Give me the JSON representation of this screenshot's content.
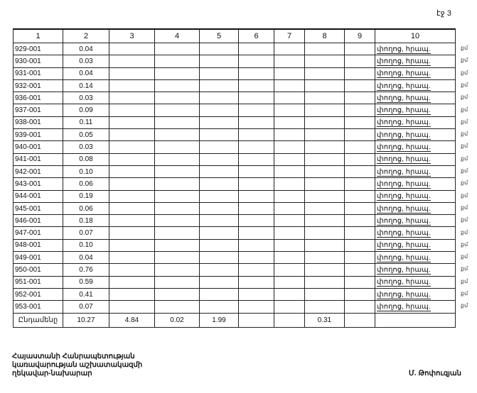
{
  "page_label": "էջ 3",
  "table": {
    "headers": [
      "1",
      "2",
      "3",
      "4",
      "5",
      "6",
      "7",
      "8",
      "9",
      "10"
    ],
    "rows": [
      [
        "929-001",
        "0.04"
      ],
      [
        "930-001",
        "0.03"
      ],
      [
        "931-001",
        "0.04"
      ],
      [
        "932-001",
        "0.14"
      ],
      [
        "936-001",
        "0.03"
      ],
      [
        "937-001",
        "0.09"
      ],
      [
        "938-001",
        "0.11"
      ],
      [
        "939-001",
        "0.05"
      ],
      [
        "940-001",
        "0.03"
      ],
      [
        "941-001",
        "0.08"
      ],
      [
        "942-001",
        "0.10"
      ],
      [
        "943-001",
        "0.06"
      ],
      [
        "944-001",
        "0.19"
      ],
      [
        "945-001",
        "0.06"
      ],
      [
        "946-001",
        "0.18"
      ],
      [
        "947-001",
        "0.07"
      ],
      [
        "948-001",
        "0.10"
      ],
      [
        "949-001",
        "0.04"
      ],
      [
        "950-001",
        "0.76"
      ],
      [
        "951-001",
        "0.59"
      ],
      [
        "952-001",
        "0.41"
      ],
      [
        "953-001",
        "0.07"
      ]
    ],
    "col10_value": "փողոց, հրապ.",
    "side_mark": "քմ",
    "total": {
      "label": "Ընդամենը",
      "c2": "10.27",
      "c3": "4.84",
      "c4": "0.02",
      "c5": "1.99",
      "c8": "0.31"
    }
  },
  "footer": {
    "title_lines": [
      "Հայաստանի Հանրապետության",
      "կառավարության աշխատակազմի",
      "ղեկավար-նախարար"
    ],
    "signatory": "Մ. Թոփուզյան"
  }
}
